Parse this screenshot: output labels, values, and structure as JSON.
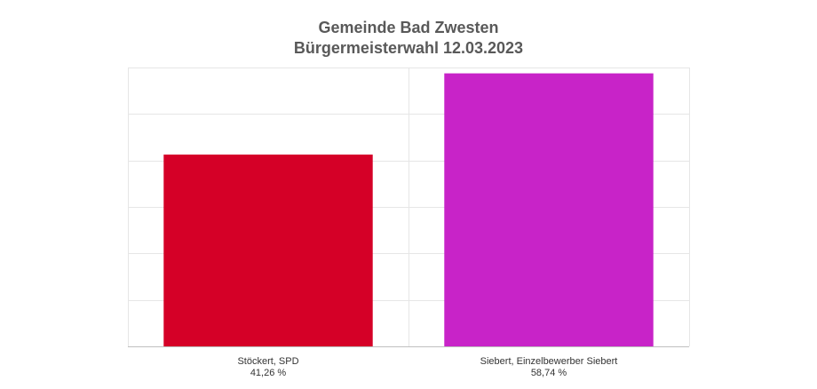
{
  "chart_data": {
    "type": "bar",
    "title": "Gemeinde Bad Zwesten",
    "subtitle": "Bürgermeisterwahl 12.03.2023",
    "categories": [
      "Stöckert, SPD",
      "Siebert, Einzelbewerber Siebert"
    ],
    "values": [
      41.26,
      58.74
    ],
    "value_labels": [
      "41,26 %",
      "58,74 %"
    ],
    "colors": [
      "#d50027",
      "#c823c8"
    ],
    "ylim": [
      0,
      60
    ],
    "grid": true,
    "legend": "none"
  }
}
